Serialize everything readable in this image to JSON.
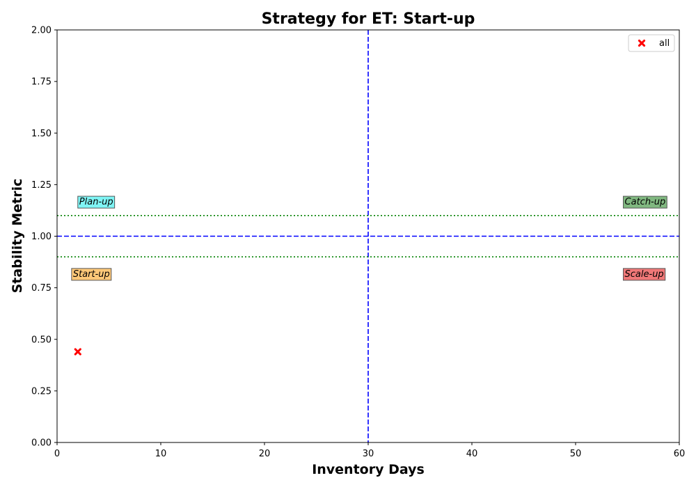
{
  "chart_data": {
    "type": "scatter",
    "title": "Strategy for ET: Start-up",
    "xlabel": "Inventory Days",
    "ylabel": "Stability Metric",
    "xlim": [
      0,
      60
    ],
    "ylim": [
      0,
      2
    ],
    "x_ticks": [
      0,
      10,
      20,
      30,
      40,
      50,
      60
    ],
    "x_tick_labels": [
      "0",
      "10",
      "20",
      "30",
      "40",
      "50",
      "60"
    ],
    "y_ticks": [
      0,
      0.25,
      0.5,
      0.75,
      1.0,
      1.25,
      1.5,
      1.75,
      2.0
    ],
    "y_tick_labels": [
      "0.00",
      "0.25",
      "0.50",
      "0.75",
      "1.00",
      "1.25",
      "1.50",
      "1.75",
      "2.00"
    ],
    "grid": false,
    "legend_position": "top-right",
    "series": [
      {
        "name": "all",
        "marker": "x",
        "color": "#ff0000",
        "points": [
          {
            "x": 2,
            "y": 0.44
          }
        ]
      }
    ],
    "reference_lines": [
      {
        "orientation": "vertical",
        "value": 30,
        "style": "dashed",
        "color": "#0000ff"
      },
      {
        "orientation": "horizontal",
        "value": 1.0,
        "style": "dashed",
        "color": "#0000ff"
      },
      {
        "orientation": "horizontal",
        "value": 1.1,
        "style": "dotted",
        "color": "#008000"
      },
      {
        "orientation": "horizontal",
        "value": 0.9,
        "style": "dotted",
        "color": "#008000"
      }
    ],
    "quadrant_labels": [
      {
        "name": "plan-up",
        "text": "Plan-up",
        "x": 2,
        "y": 1.17,
        "bg": "#7ff5f5"
      },
      {
        "name": "catch-up",
        "text": "Catch-up",
        "x": 54.6,
        "y": 1.17,
        "bg": "#80b880"
      },
      {
        "name": "start-up",
        "text": "Start-up",
        "x": 1.4,
        "y": 0.82,
        "bg": "#ffc878"
      },
      {
        "name": "scale-up",
        "text": "Scale-up",
        "x": 54.6,
        "y": 0.82,
        "bg": "#f07878"
      }
    ]
  }
}
